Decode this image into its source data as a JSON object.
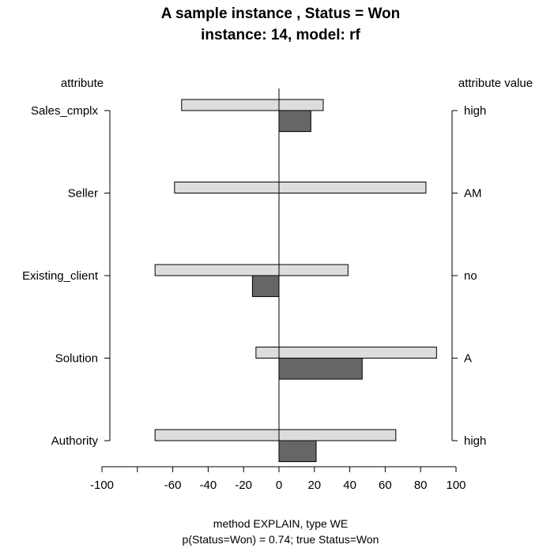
{
  "chart_data": {
    "type": "bar",
    "title_lines": [
      "A sample instance , Status = Won",
      "instance: 14, model: rf"
    ],
    "left_axis_label": "attribute",
    "right_axis_label": "attribute value",
    "x_ticks": [
      -100,
      -60,
      -40,
      -20,
      0,
      20,
      40,
      60,
      80,
      100
    ],
    "x_tick_labels": [
      "-100",
      "-60",
      "-40",
      "-20",
      "0",
      "20",
      "40",
      "60",
      "80",
      "100"
    ],
    "xlim": [
      -100,
      100
    ],
    "categories": [
      "Sales_cmplx",
      "Seller",
      "Existing_client",
      "Solution",
      "Authority"
    ],
    "attribute_values": [
      "high",
      "AM",
      "no",
      "A",
      "high"
    ],
    "series": [
      {
        "kind": "range",
        "color": "#dddddd",
        "ranges": [
          [
            -55,
            25
          ],
          [
            -59,
            83
          ],
          [
            -70,
            39
          ],
          [
            -13,
            89
          ],
          [
            -70,
            66
          ]
        ]
      },
      {
        "kind": "contribution",
        "color": "#666666",
        "values": [
          18,
          null,
          -15,
          47,
          21
        ]
      }
    ],
    "footer_lines": [
      "method EXPLAIN, type WE",
      "p(Status=Won) = 0.74;  true Status=Won"
    ]
  }
}
